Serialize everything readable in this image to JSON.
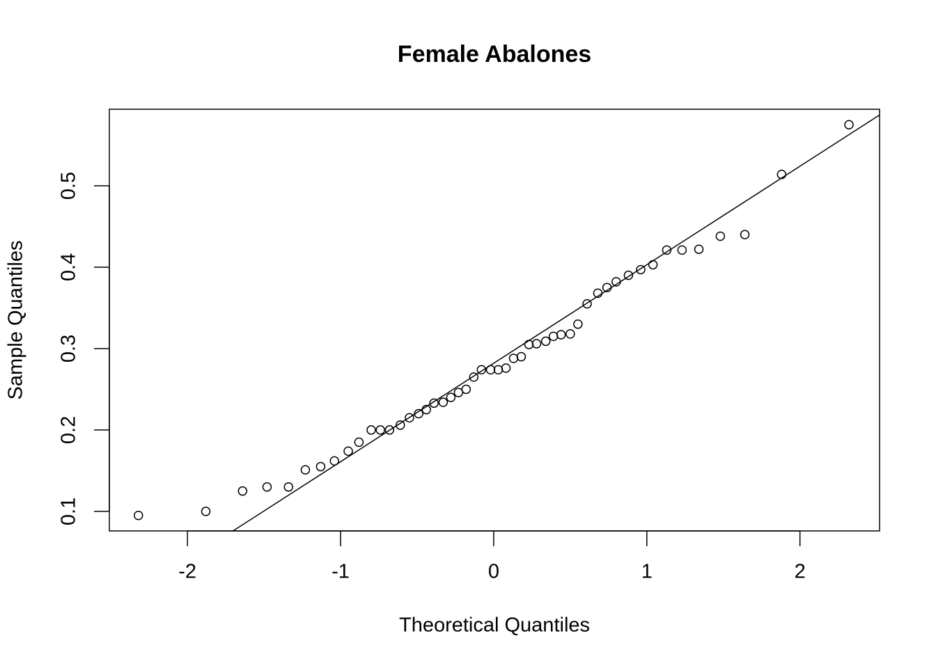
{
  "chart_data": {
    "type": "scatter",
    "title": "Female Abalones",
    "x_label": "Theoretical Quantiles",
    "y_label": "Sample Quantiles",
    "x": [
      -2.32,
      -1.88,
      -1.64,
      -1.48,
      -1.34,
      -1.23,
      -1.13,
      -1.04,
      -0.95,
      -0.88,
      -0.8,
      -0.74,
      -0.68,
      -0.61,
      -0.55,
      -0.49,
      -0.44,
      -0.39,
      -0.33,
      -0.28,
      -0.23,
      -0.18,
      -0.13,
      -0.08,
      -0.02,
      0.03,
      0.08,
      0.13,
      0.18,
      0.23,
      0.28,
      0.34,
      0.39,
      0.44,
      0.5,
      0.55,
      0.61,
      0.68,
      0.74,
      0.8,
      0.88,
      0.96,
      1.04,
      1.13,
      1.23,
      1.34,
      1.48,
      1.64,
      1.88,
      2.32
    ],
    "values": [
      0.095,
      0.1,
      0.125,
      0.13,
      0.13,
      0.151,
      0.155,
      0.162,
      0.174,
      0.185,
      0.2,
      0.2,
      0.2,
      0.206,
      0.215,
      0.22,
      0.225,
      0.233,
      0.234,
      0.24,
      0.246,
      0.25,
      0.265,
      0.274,
      0.274,
      0.274,
      0.276,
      0.288,
      0.29,
      0.305,
      0.306,
      0.309,
      0.315,
      0.317,
      0.318,
      0.33,
      0.355,
      0.368,
      0.375,
      0.382,
      0.39,
      0.397,
      0.403,
      0.421,
      0.421,
      0.422,
      0.438,
      0.44,
      0.514,
      0.575
    ],
    "color": "#000000",
    "qqline": {
      "intercept": 0.282,
      "slope": 0.121
    },
    "xlim": [
      -2.51,
      2.52
    ],
    "ylim": [
      0.076,
      0.594
    ],
    "xticks": [
      -2,
      -1,
      0,
      1,
      2
    ],
    "yticks": [
      0.1,
      0.2,
      0.3,
      0.4,
      0.5
    ],
    "grid": false
  }
}
